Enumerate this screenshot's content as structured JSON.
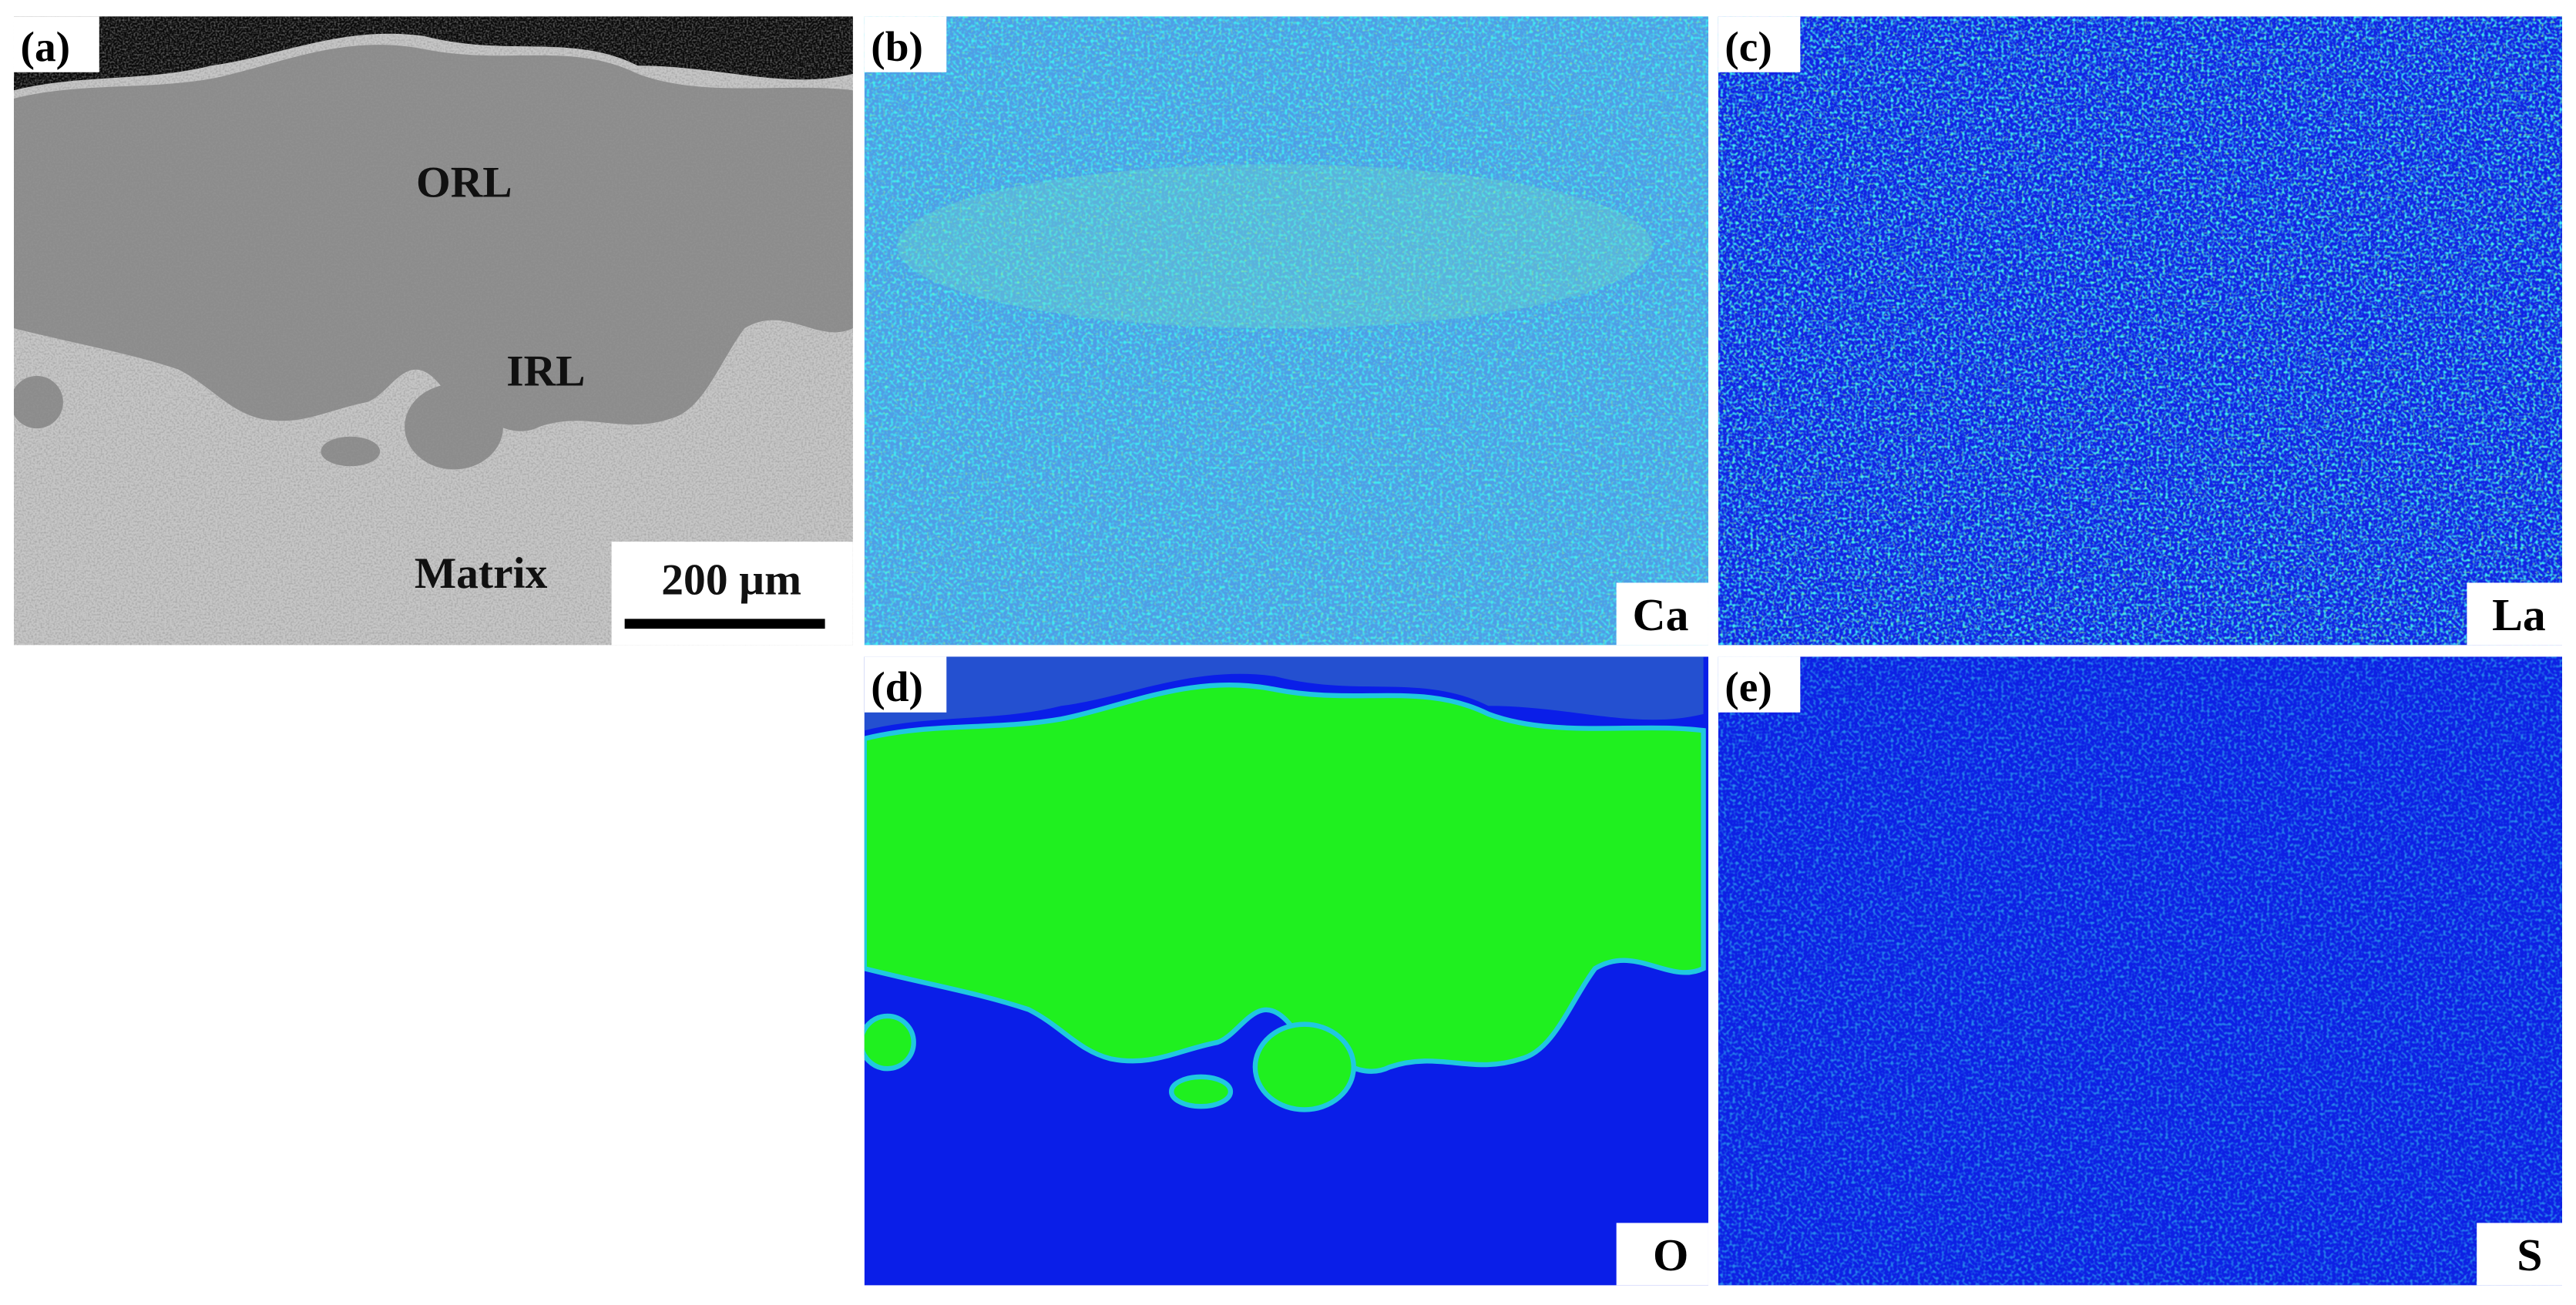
{
  "panels": [
    {
      "label": "(a)",
      "annotations": [
        "ORL",
        "IRL",
        "Matrix"
      ],
      "scale_bar": "200 µm"
    },
    {
      "label": "(b)",
      "element": "Ca"
    },
    {
      "label": "(c)",
      "element": "La"
    },
    {
      "label": "(d)",
      "element": "O"
    },
    {
      "label": "(e)",
      "element": "S"
    }
  ]
}
